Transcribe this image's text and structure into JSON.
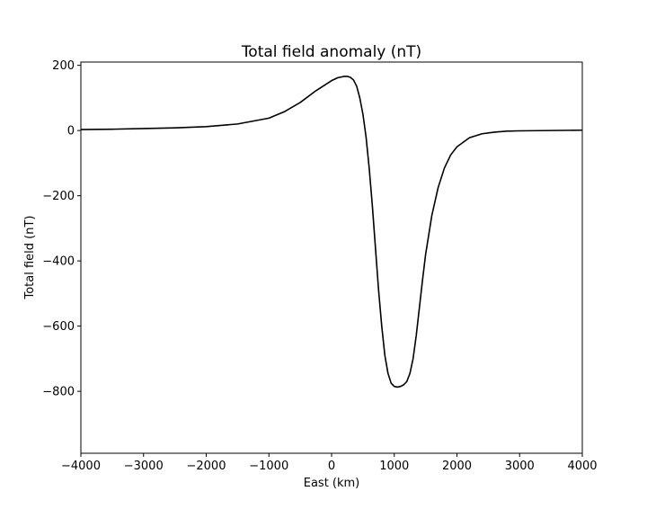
{
  "chart_data": {
    "type": "line",
    "title": "Total field anomaly (nT)",
    "xlabel": "East (km)",
    "ylabel": "Total field (nT)",
    "xlim": [
      -4000,
      4000
    ],
    "ylim": [
      -990,
      210
    ],
    "xticks": [
      -4000,
      -3000,
      -2000,
      -1000,
      0,
      1000,
      2000,
      3000,
      4000
    ],
    "xtick_labels": [
      "−4000",
      "−3000",
      "−2000",
      "−1000",
      "0",
      "1000",
      "2000",
      "3000",
      "4000"
    ],
    "yticks": [
      200,
      0,
      -200,
      -400,
      -600,
      -800
    ],
    "ytick_labels": [
      "200",
      "0",
      "−200",
      "−400",
      "−600",
      "−800"
    ],
    "grid": false,
    "series": [
      {
        "color": "#000000",
        "x": [
          -4000,
          -3500,
          -3000,
          -2500,
          -2000,
          -1500,
          -1000,
          -750,
          -500,
          -250,
          0,
          100,
          200,
          250,
          300,
          350,
          400,
          450,
          500,
          550,
          600,
          650,
          700,
          750,
          800,
          850,
          900,
          950,
          1000,
          1050,
          1100,
          1150,
          1200,
          1250,
          1300,
          1350,
          1400,
          1450,
          1500,
          1600,
          1700,
          1800,
          1900,
          2000,
          2200,
          2400,
          2600,
          2800,
          3000,
          3500,
          4000
        ],
        "y": [
          3,
          4,
          6,
          8,
          12,
          20,
          38,
          58,
          86,
          122,
          153,
          162,
          166,
          166,
          163,
          155,
          136,
          100,
          50,
          -20,
          -115,
          -230,
          -360,
          -490,
          -600,
          -690,
          -745,
          -775,
          -785,
          -787,
          -785,
          -780,
          -770,
          -745,
          -700,
          -630,
          -545,
          -460,
          -380,
          -260,
          -175,
          -115,
          -75,
          -50,
          -22,
          -10,
          -5,
          -2,
          -1,
          0,
          1
        ]
      }
    ]
  }
}
